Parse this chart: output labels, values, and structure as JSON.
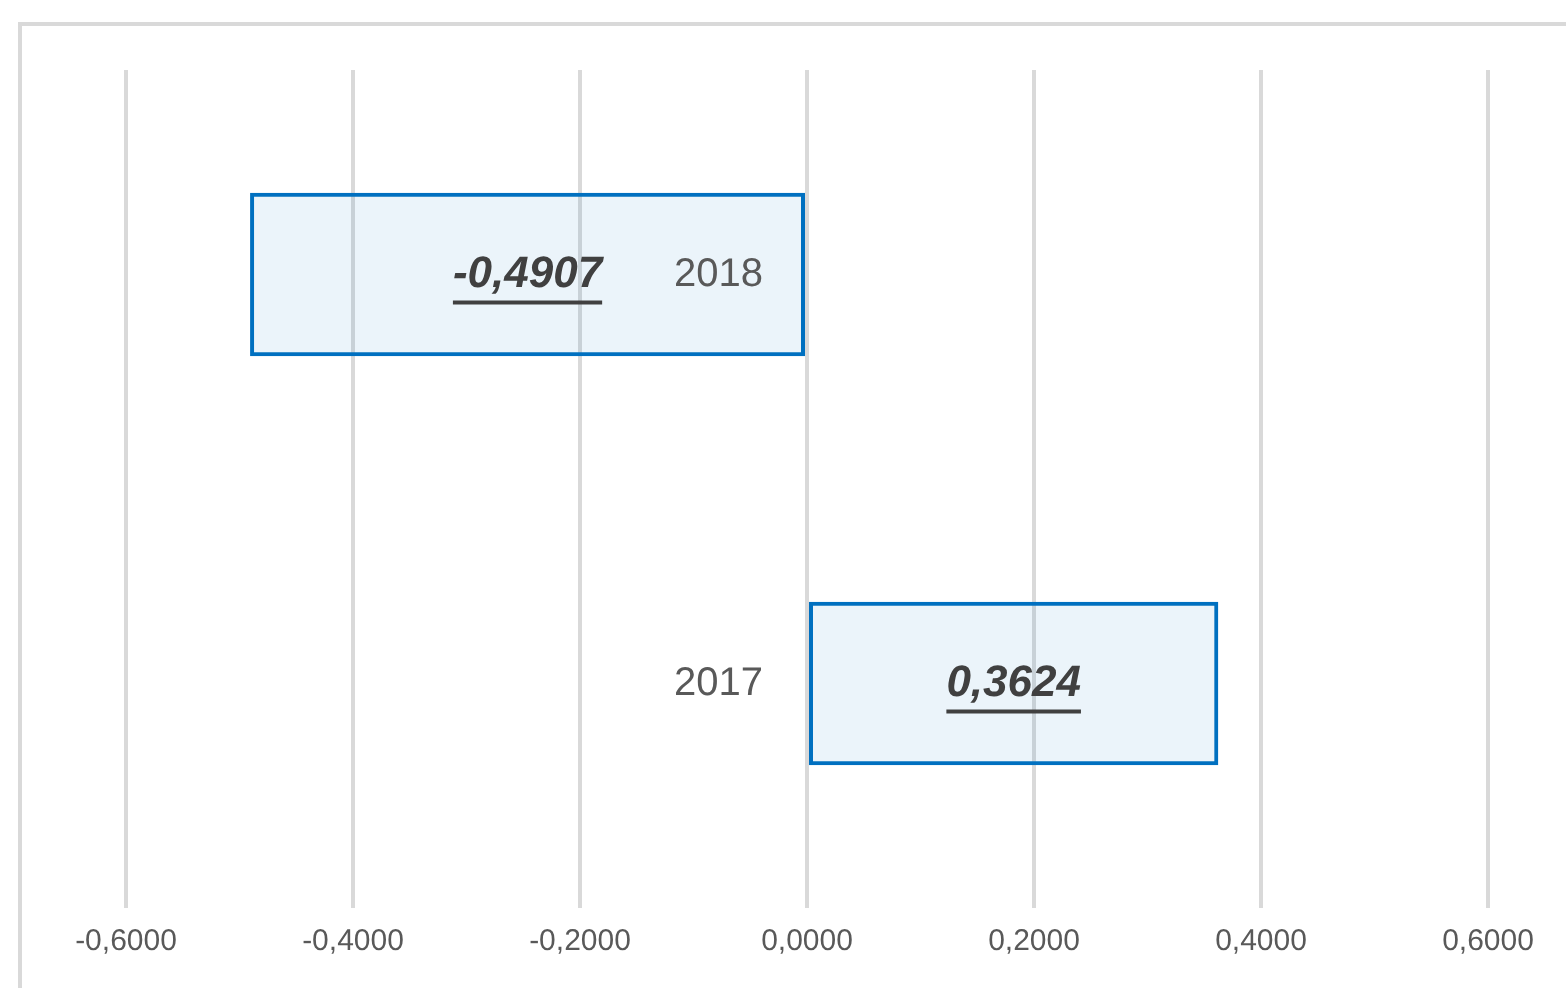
{
  "chart_data": {
    "type": "bar",
    "orientation": "horizontal",
    "categories": [
      "2018",
      "2017"
    ],
    "values": [
      -0.4907,
      0.3624
    ],
    "color": "#0070c0",
    "value_labels": [
      "-0,4907",
      "0,3624"
    ],
    "xlim": [
      -0.6,
      0.6
    ],
    "xticks": [
      {
        "value": -0.6,
        "label": "-0,6000"
      },
      {
        "value": -0.4,
        "label": "-0,4000"
      },
      {
        "value": -0.2,
        "label": "-0,2000"
      },
      {
        "value": 0,
        "label": "0,0000"
      },
      {
        "value": 0.2,
        "label": "0,2000"
      },
      {
        "value": 0.4,
        "label": "0,4000"
      },
      {
        "value": 0.6,
        "label": "0,6000"
      }
    ],
    "grid": "x",
    "legend": false
  }
}
